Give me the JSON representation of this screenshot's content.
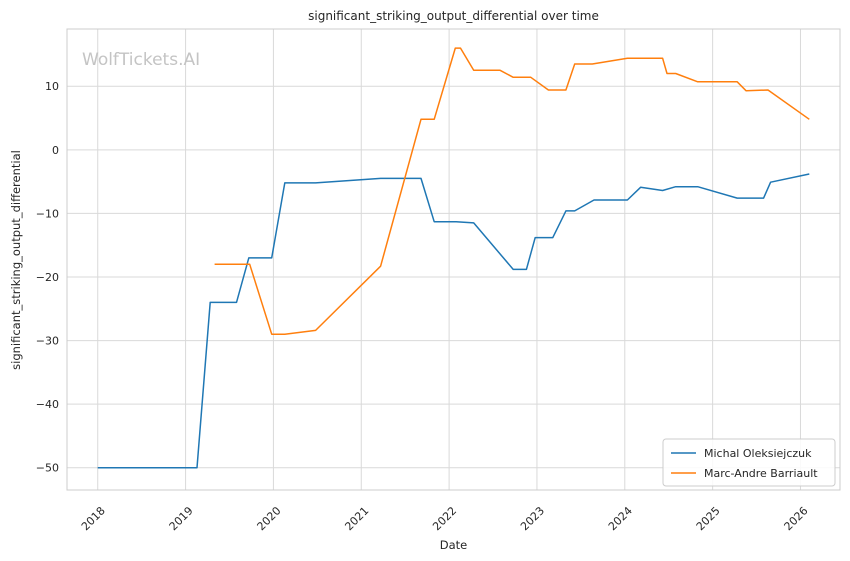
{
  "chart_data": {
    "type": "line",
    "title": "significant_striking_output_differential over time",
    "xlabel": "Date",
    "ylabel": "significant_striking_output_differential",
    "watermark": "WolfTickets.AI",
    "xlim": [
      2017.65,
      2026.45
    ],
    "ylim": [
      -53.5,
      19.0
    ],
    "xticks": [
      2018,
      2019,
      2020,
      2021,
      2022,
      2023,
      2024,
      2025,
      2026
    ],
    "xtick_labels": [
      "2018",
      "2019",
      "2020",
      "2021",
      "2022",
      "2023",
      "2024",
      "2025",
      "2026"
    ],
    "yticks": [
      -50,
      -40,
      -30,
      -20,
      -10,
      0,
      10
    ],
    "ytick_labels": [
      "−50",
      "−40",
      "−30",
      "−20",
      "−10",
      "0",
      "10"
    ],
    "grid": true,
    "legend_position": "bottom-right",
    "series": [
      {
        "name": "Michal Oleksiejczuk",
        "color": "#1f77b4",
        "x": [
          2018.0,
          2019.13,
          2019.28,
          2019.58,
          2019.72,
          2019.98,
          2020.13,
          2020.48,
          2021.22,
          2021.68,
          2021.83,
          2022.08,
          2022.28,
          2022.73,
          2022.88,
          2022.98,
          2023.18,
          2023.33,
          2023.43,
          2023.65,
          2024.03,
          2024.18,
          2024.43,
          2024.58,
          2024.83,
          2025.28,
          2025.58,
          2025.66,
          2026.1
        ],
        "y": [
          -50,
          -50,
          -24,
          -24,
          -17,
          -17,
          -5.2,
          -5.2,
          -4.5,
          -4.5,
          -11.3,
          -11.3,
          -11.5,
          -18.8,
          -18.8,
          -13.8,
          -13.8,
          -9.6,
          -9.6,
          -7.9,
          -7.9,
          -5.9,
          -6.4,
          -5.8,
          -5.8,
          -7.6,
          -7.6,
          -5.1,
          -3.8
        ]
      },
      {
        "name": "Marc-Andre Barriault",
        "color": "#ff7f0e",
        "x": [
          2019.33,
          2019.73,
          2019.98,
          2020.13,
          2020.48,
          2021.22,
          2021.68,
          2021.83,
          2022.07,
          2022.13,
          2022.28,
          2022.58,
          2022.73,
          2022.93,
          2023.13,
          2023.33,
          2023.43,
          2023.63,
          2024.03,
          2024.43,
          2024.48,
          2024.58,
          2024.83,
          2025.28,
          2025.38,
          2025.63,
          2026.1
        ],
        "y": [
          -18,
          -18,
          -29,
          -29,
          -28.4,
          -18.3,
          4.8,
          4.8,
          16,
          16,
          12.5,
          12.5,
          11.4,
          11.4,
          9.4,
          9.4,
          13.5,
          13.5,
          14.4,
          14.4,
          12,
          12,
          10.7,
          10.7,
          9.3,
          9.4,
          4.8
        ]
      }
    ]
  }
}
